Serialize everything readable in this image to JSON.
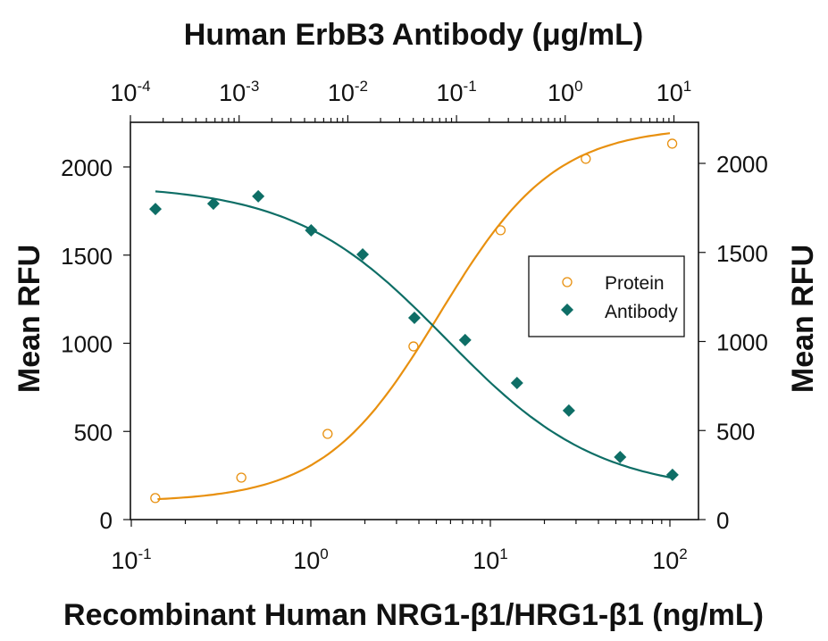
{
  "chart_data": {
    "type": "scatter",
    "title": "",
    "top_xlabel": "Human ErbB3 Antibody (μg/mL)",
    "xlabel": "Recombinant Human NRG1-β1/HRG1-β1 (ng/mL)",
    "ylabel": "Mean RFU",
    "ylabel_right": "Mean RFU",
    "x_scale": "log",
    "bottom_x_ticks": [
      {
        "base": "10",
        "exp": "-1",
        "value": 0.1
      },
      {
        "base": "10",
        "exp": "0",
        "value": 1
      },
      {
        "base": "10",
        "exp": "1",
        "value": 10
      },
      {
        "base": "10",
        "exp": "2",
        "value": 100
      }
    ],
    "top_x_ticks": [
      {
        "base": "10",
        "exp": "-4",
        "value": 0.0001
      },
      {
        "base": "10",
        "exp": "-3",
        "value": 0.001
      },
      {
        "base": "10",
        "exp": "-2",
        "value": 0.01
      },
      {
        "base": "10",
        "exp": "-1",
        "value": 0.1
      },
      {
        "base": "10",
        "exp": "0",
        "value": 1
      },
      {
        "base": "10",
        "exp": "1",
        "value": 10
      }
    ],
    "y_ticks": [
      "0",
      "500",
      "1000",
      "1500",
      "2000"
    ],
    "ylim": [
      0,
      2200
    ],
    "legend_position": "center-right",
    "grid": false,
    "series": [
      {
        "name": "Protein",
        "axis": "bottom-x / left-y",
        "marker": "open-circle",
        "color": "#E8900F",
        "x": [
          0.136,
          0.41,
          1.24,
          3.73,
          11.4,
          34,
          103
        ],
        "values": [
          122,
          238,
          486,
          982,
          1641,
          2046,
          2132
        ],
        "fit": "sigmoid"
      },
      {
        "name": "Antibody",
        "axis": "top-x / right-y",
        "marker": "filled-diamond",
        "color": "#0E6E66",
        "x": [
          0.00017,
          0.00058,
          0.0015,
          0.0046,
          0.0137,
          0.041,
          0.12,
          0.36,
          1.08,
          3.2,
          9.7
        ],
        "values": [
          1744,
          1774,
          1815,
          1624,
          1489,
          1133,
          1008,
          767,
          612,
          351,
          251
        ],
        "fit": "sigmoid"
      }
    ]
  },
  "legend": {
    "items": [
      {
        "label": "Protein"
      },
      {
        "label": "Antibody"
      }
    ]
  },
  "colors": {
    "protein": "#E8900F",
    "antibody": "#0E6E66",
    "axis": "#111111"
  }
}
